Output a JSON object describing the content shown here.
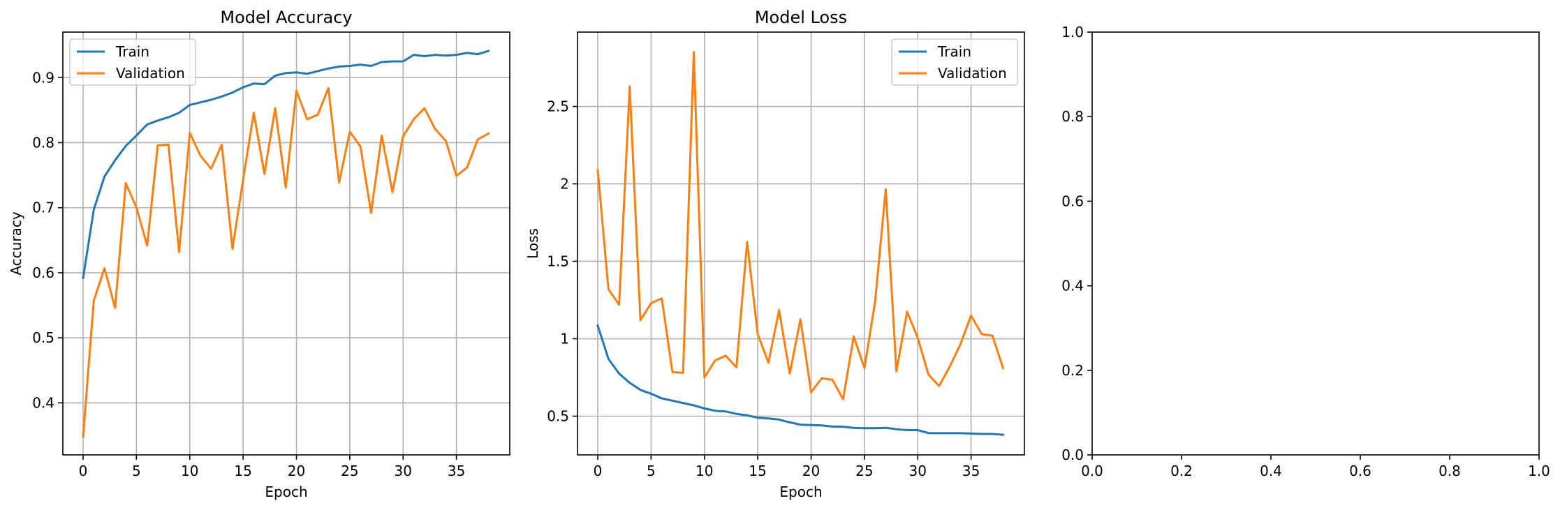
{
  "chart_data": [
    {
      "type": "line",
      "title": "Model Accuracy",
      "xlabel": "Epoch",
      "ylabel": "Accuracy",
      "xlim": [
        -1.9,
        40
      ],
      "ylim": [
        0.32,
        0.97
      ],
      "xticks": [
        0,
        5,
        10,
        15,
        20,
        25,
        30,
        35
      ],
      "yticks": [
        0.4,
        0.5,
        0.6,
        0.7,
        0.8,
        0.9
      ],
      "grid": true,
      "legend": "upper left",
      "x": [
        0,
        1,
        2,
        3,
        4,
        5,
        6,
        7,
        8,
        9,
        10,
        11,
        12,
        13,
        14,
        15,
        16,
        17,
        18,
        19,
        20,
        21,
        22,
        23,
        24,
        25,
        26,
        27,
        28,
        29,
        30,
        31,
        32,
        33,
        34,
        35,
        36,
        37,
        38
      ],
      "series": [
        {
          "name": "Train",
          "color": "#1f77b4",
          "values": [
            0.592,
            0.697,
            0.748,
            0.773,
            0.795,
            0.811,
            0.828,
            0.834,
            0.839,
            0.846,
            0.858,
            0.862,
            0.866,
            0.871,
            0.877,
            0.885,
            0.891,
            0.89,
            0.903,
            0.907,
            0.908,
            0.906,
            0.91,
            0.914,
            0.917,
            0.918,
            0.92,
            0.918,
            0.924,
            0.925,
            0.925,
            0.935,
            0.933,
            0.935,
            0.934,
            0.935,
            0.938,
            0.936,
            0.941
          ]
        },
        {
          "name": "Validation",
          "color": "#ff7f0e",
          "values": [
            0.348,
            0.557,
            0.607,
            0.546,
            0.738,
            0.7,
            0.642,
            0.796,
            0.797,
            0.632,
            0.815,
            0.78,
            0.76,
            0.797,
            0.637,
            0.743,
            0.846,
            0.752,
            0.853,
            0.731,
            0.88,
            0.836,
            0.843,
            0.884,
            0.739,
            0.817,
            0.794,
            0.692,
            0.811,
            0.724,
            0.81,
            0.836,
            0.853,
            0.821,
            0.803,
            0.749,
            0.762,
            0.805,
            0.814
          ]
        }
      ]
    },
    {
      "type": "line",
      "title": "Model Loss",
      "xlabel": "Epoch",
      "ylabel": "Loss",
      "xlim": [
        -1.9,
        40
      ],
      "ylim": [
        0.25,
        2.98
      ],
      "xticks": [
        0,
        5,
        10,
        15,
        20,
        25,
        30,
        35
      ],
      "yticks": [
        0.5,
        1.0,
        1.5,
        2.0,
        2.5
      ],
      "grid": true,
      "legend": "upper right",
      "x": [
        0,
        1,
        2,
        3,
        4,
        5,
        6,
        7,
        8,
        9,
        10,
        11,
        12,
        13,
        14,
        15,
        16,
        17,
        18,
        19,
        20,
        21,
        22,
        23,
        24,
        25,
        26,
        27,
        28,
        29,
        30,
        31,
        32,
        33,
        34,
        35,
        36,
        37,
        38
      ],
      "series": [
        {
          "name": "Train",
          "color": "#1f77b4",
          "values": [
            1.085,
            0.87,
            0.775,
            0.715,
            0.67,
            0.645,
            0.615,
            0.6,
            0.585,
            0.57,
            0.55,
            0.535,
            0.53,
            0.515,
            0.505,
            0.49,
            0.485,
            0.478,
            0.46,
            0.445,
            0.443,
            0.44,
            0.433,
            0.432,
            0.425,
            0.422,
            0.422,
            0.425,
            0.416,
            0.41,
            0.41,
            0.391,
            0.39,
            0.39,
            0.39,
            0.388,
            0.385,
            0.385,
            0.38
          ]
        },
        {
          "name": "Validation",
          "color": "#ff7f0e",
          "values": [
            2.09,
            1.32,
            1.22,
            2.63,
            1.12,
            1.23,
            1.26,
            0.785,
            0.78,
            2.85,
            0.75,
            0.86,
            0.89,
            0.815,
            1.625,
            1.03,
            0.845,
            1.185,
            0.775,
            1.125,
            0.655,
            0.745,
            0.735,
            0.61,
            1.015,
            0.81,
            1.24,
            1.965,
            0.79,
            1.175,
            1.005,
            0.77,
            0.695,
            0.82,
            0.965,
            1.15,
            1.03,
            1.02,
            0.81
          ]
        }
      ]
    },
    {
      "type": "line",
      "title": "",
      "xlabel": "",
      "ylabel": "",
      "xlim": [
        0,
        1
      ],
      "ylim": [
        0,
        1
      ],
      "xticks": [
        0.0,
        0.2,
        0.4,
        0.6,
        0.8,
        1.0
      ],
      "yticks": [
        0.0,
        0.2,
        0.4,
        0.6,
        0.8,
        1.0
      ],
      "xticklabels": [
        "0.0",
        "0.2",
        "0.4",
        "0.6",
        "0.8",
        "1.0"
      ],
      "yticklabels": [
        "0.0",
        "0.2",
        "0.4",
        "0.6",
        "0.8",
        "1.0"
      ],
      "grid": false,
      "series": []
    }
  ]
}
